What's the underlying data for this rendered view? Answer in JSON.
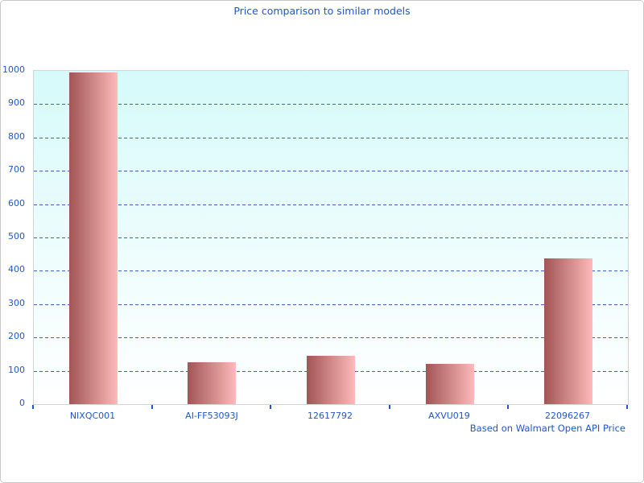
{
  "chart_data": {
    "type": "bar",
    "title": "Price comparison to similar models",
    "footnote": "Based on Walmart Open API Price",
    "categories": [
      "NIXQC001",
      "AI-FF53093J",
      "12617792",
      "AXVU019",
      "22096267"
    ],
    "values": [
      995,
      125,
      144,
      120,
      438
    ],
    "xlabel": "",
    "ylabel": "",
    "ylim": [
      0,
      1000
    ],
    "ytick_step": 100,
    "grid": "horizontal-dashed",
    "legend": "none",
    "colors": {
      "title_text": "#2156c8",
      "axis_text": "#2156c8",
      "gridline": "#3a5fc8",
      "tick": "#2156c8",
      "bar_gradient_left": "#a15555",
      "bar_gradient_right": "#fdbaba",
      "plot_bg_top": "#d6fafa",
      "plot_bg_bottom": "#ffffff",
      "plot_border": "#d4d4d4",
      "frame_border": "#c9c9c9"
    }
  }
}
